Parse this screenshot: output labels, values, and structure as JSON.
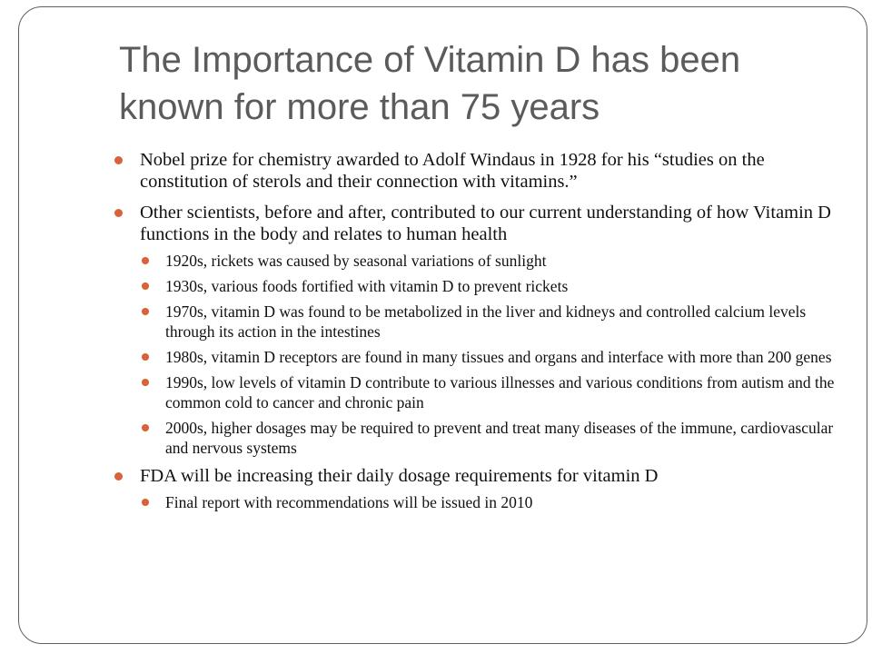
{
  "slide": {
    "title": "The Importance of Vitamin D has been known for more than 75 years",
    "bullets": [
      {
        "text": "Nobel prize for chemistry awarded to Adolf Windaus in 1928 for his “studies on the constitution of sterols and their connection with vitamins.”",
        "sub": []
      },
      {
        "text": " Other scientists, before and after, contributed to our current understanding of how Vitamin D functions in the body and relates to human health",
        "sub": [
          "1920s, rickets was caused by seasonal variations of sunlight",
          "1930s, various foods fortified with vitamin D to prevent rickets",
          "1970s, vitamin D was found to be metabolized in the liver and kidneys and controlled calcium levels through its action in the intestines",
          "1980s, vitamin D receptors are found in many tissues and organs and interface with more than 200 genes",
          "1990s, low levels of vitamin D contribute to various illnesses and various conditions from autism and the common cold to cancer and chronic pain",
          "2000s, higher dosages may be required to prevent and treat many diseases of the immune, cardiovascular and nervous systems"
        ]
      },
      {
        "text": "FDA will be increasing their daily dosage requirements for vitamin D",
        "sub": [
          "Final report with recommendations will be issued in 2010"
        ]
      }
    ],
    "colors": {
      "bullet": "#d9623b",
      "title": "#5b5b5b",
      "body": "#111111",
      "frame": "#5f5f5f"
    }
  }
}
